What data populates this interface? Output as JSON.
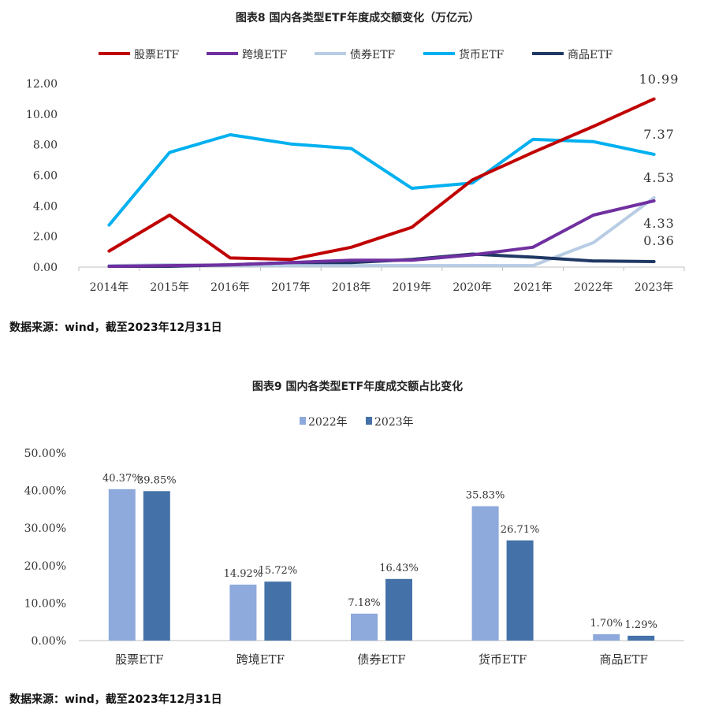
{
  "chart1": {
    "title": "图表8  国内各类型ETF年度成交额变化（万亿元）",
    "source": "数据来源：wind，截至2023年12月31日"
  },
  "chart2": {
    "title": "图表9  国内各类型ETF年度成交额占比变化",
    "source": "数据来源：wind，截至2023年12月31日"
  },
  "chart_data": [
    {
      "type": "line",
      "title": "图表8  国内各类型ETF年度成交额变化（万亿元）",
      "x": [
        "2014年",
        "2015年",
        "2016年",
        "2017年",
        "2018年",
        "2019年",
        "2020年",
        "2021年",
        "2022年",
        "2023年"
      ],
      "ylim": [
        0,
        12
      ],
      "yticks": [
        "0.00",
        "2.00",
        "4.00",
        "6.00",
        "8.00",
        "10.00",
        "12.00"
      ],
      "legend_position": "top",
      "grid": false,
      "series": [
        {
          "name": "股票ETF",
          "color": "#C00000",
          "values": [
            1.05,
            3.4,
            0.6,
            0.5,
            1.3,
            2.6,
            5.7,
            7.5,
            9.2,
            10.99
          ]
        },
        {
          "name": "跨境ETF",
          "color": "#7030A0",
          "values": [
            0.05,
            0.1,
            0.15,
            0.3,
            0.45,
            0.45,
            0.8,
            1.3,
            3.4,
            4.33
          ]
        },
        {
          "name": "债券ETF",
          "color": "#B8CCE4",
          "values": [
            0.1,
            0.15,
            0.1,
            0.1,
            0.1,
            0.1,
            0.1,
            0.1,
            1.6,
            4.53
          ]
        },
        {
          "name": "货币ETF",
          "color": "#00B0F0",
          "values": [
            2.75,
            7.5,
            8.65,
            8.05,
            7.75,
            5.15,
            5.5,
            8.35,
            8.2,
            7.37
          ]
        },
        {
          "name": "商品ETF",
          "color": "#1F3864",
          "values": [
            0.05,
            0.05,
            0.15,
            0.3,
            0.3,
            0.5,
            0.85,
            0.65,
            0.4,
            0.36
          ]
        }
      ],
      "data_labels": [
        {
          "series": "股票ETF",
          "text": "10.99"
        },
        {
          "series": "货币ETF",
          "text": "7.37"
        },
        {
          "series": "债券ETF",
          "text": "4.53"
        },
        {
          "series": "跨境ETF",
          "text": "4.33"
        },
        {
          "series": "商品ETF",
          "text": "0.36"
        }
      ]
    },
    {
      "type": "bar",
      "title": "图表9  国内各类型ETF年度成交额占比变化",
      "categories": [
        "股票ETF",
        "跨境ETF",
        "债券ETF",
        "货币ETF",
        "商品ETF"
      ],
      "ylim": [
        0,
        50
      ],
      "yticks": [
        "0.00%",
        "10.00%",
        "20.00%",
        "30.00%",
        "40.00%",
        "50.00%"
      ],
      "legend_position": "top",
      "grid": false,
      "series": [
        {
          "name": "2022年",
          "color": "#8EA9DB",
          "values": [
            40.37,
            14.92,
            7.18,
            35.83,
            1.7
          ],
          "labels": [
            "40.37%",
            "14.92%",
            "7.18%",
            "35.83%",
            "1.70%"
          ]
        },
        {
          "name": "2023年",
          "color": "#4472A8",
          "values": [
            39.85,
            15.72,
            16.43,
            26.71,
            1.29
          ],
          "labels": [
            "39.85%",
            "15.72%",
            "16.43%",
            "26.71%",
            "1.29%"
          ]
        }
      ]
    }
  ]
}
